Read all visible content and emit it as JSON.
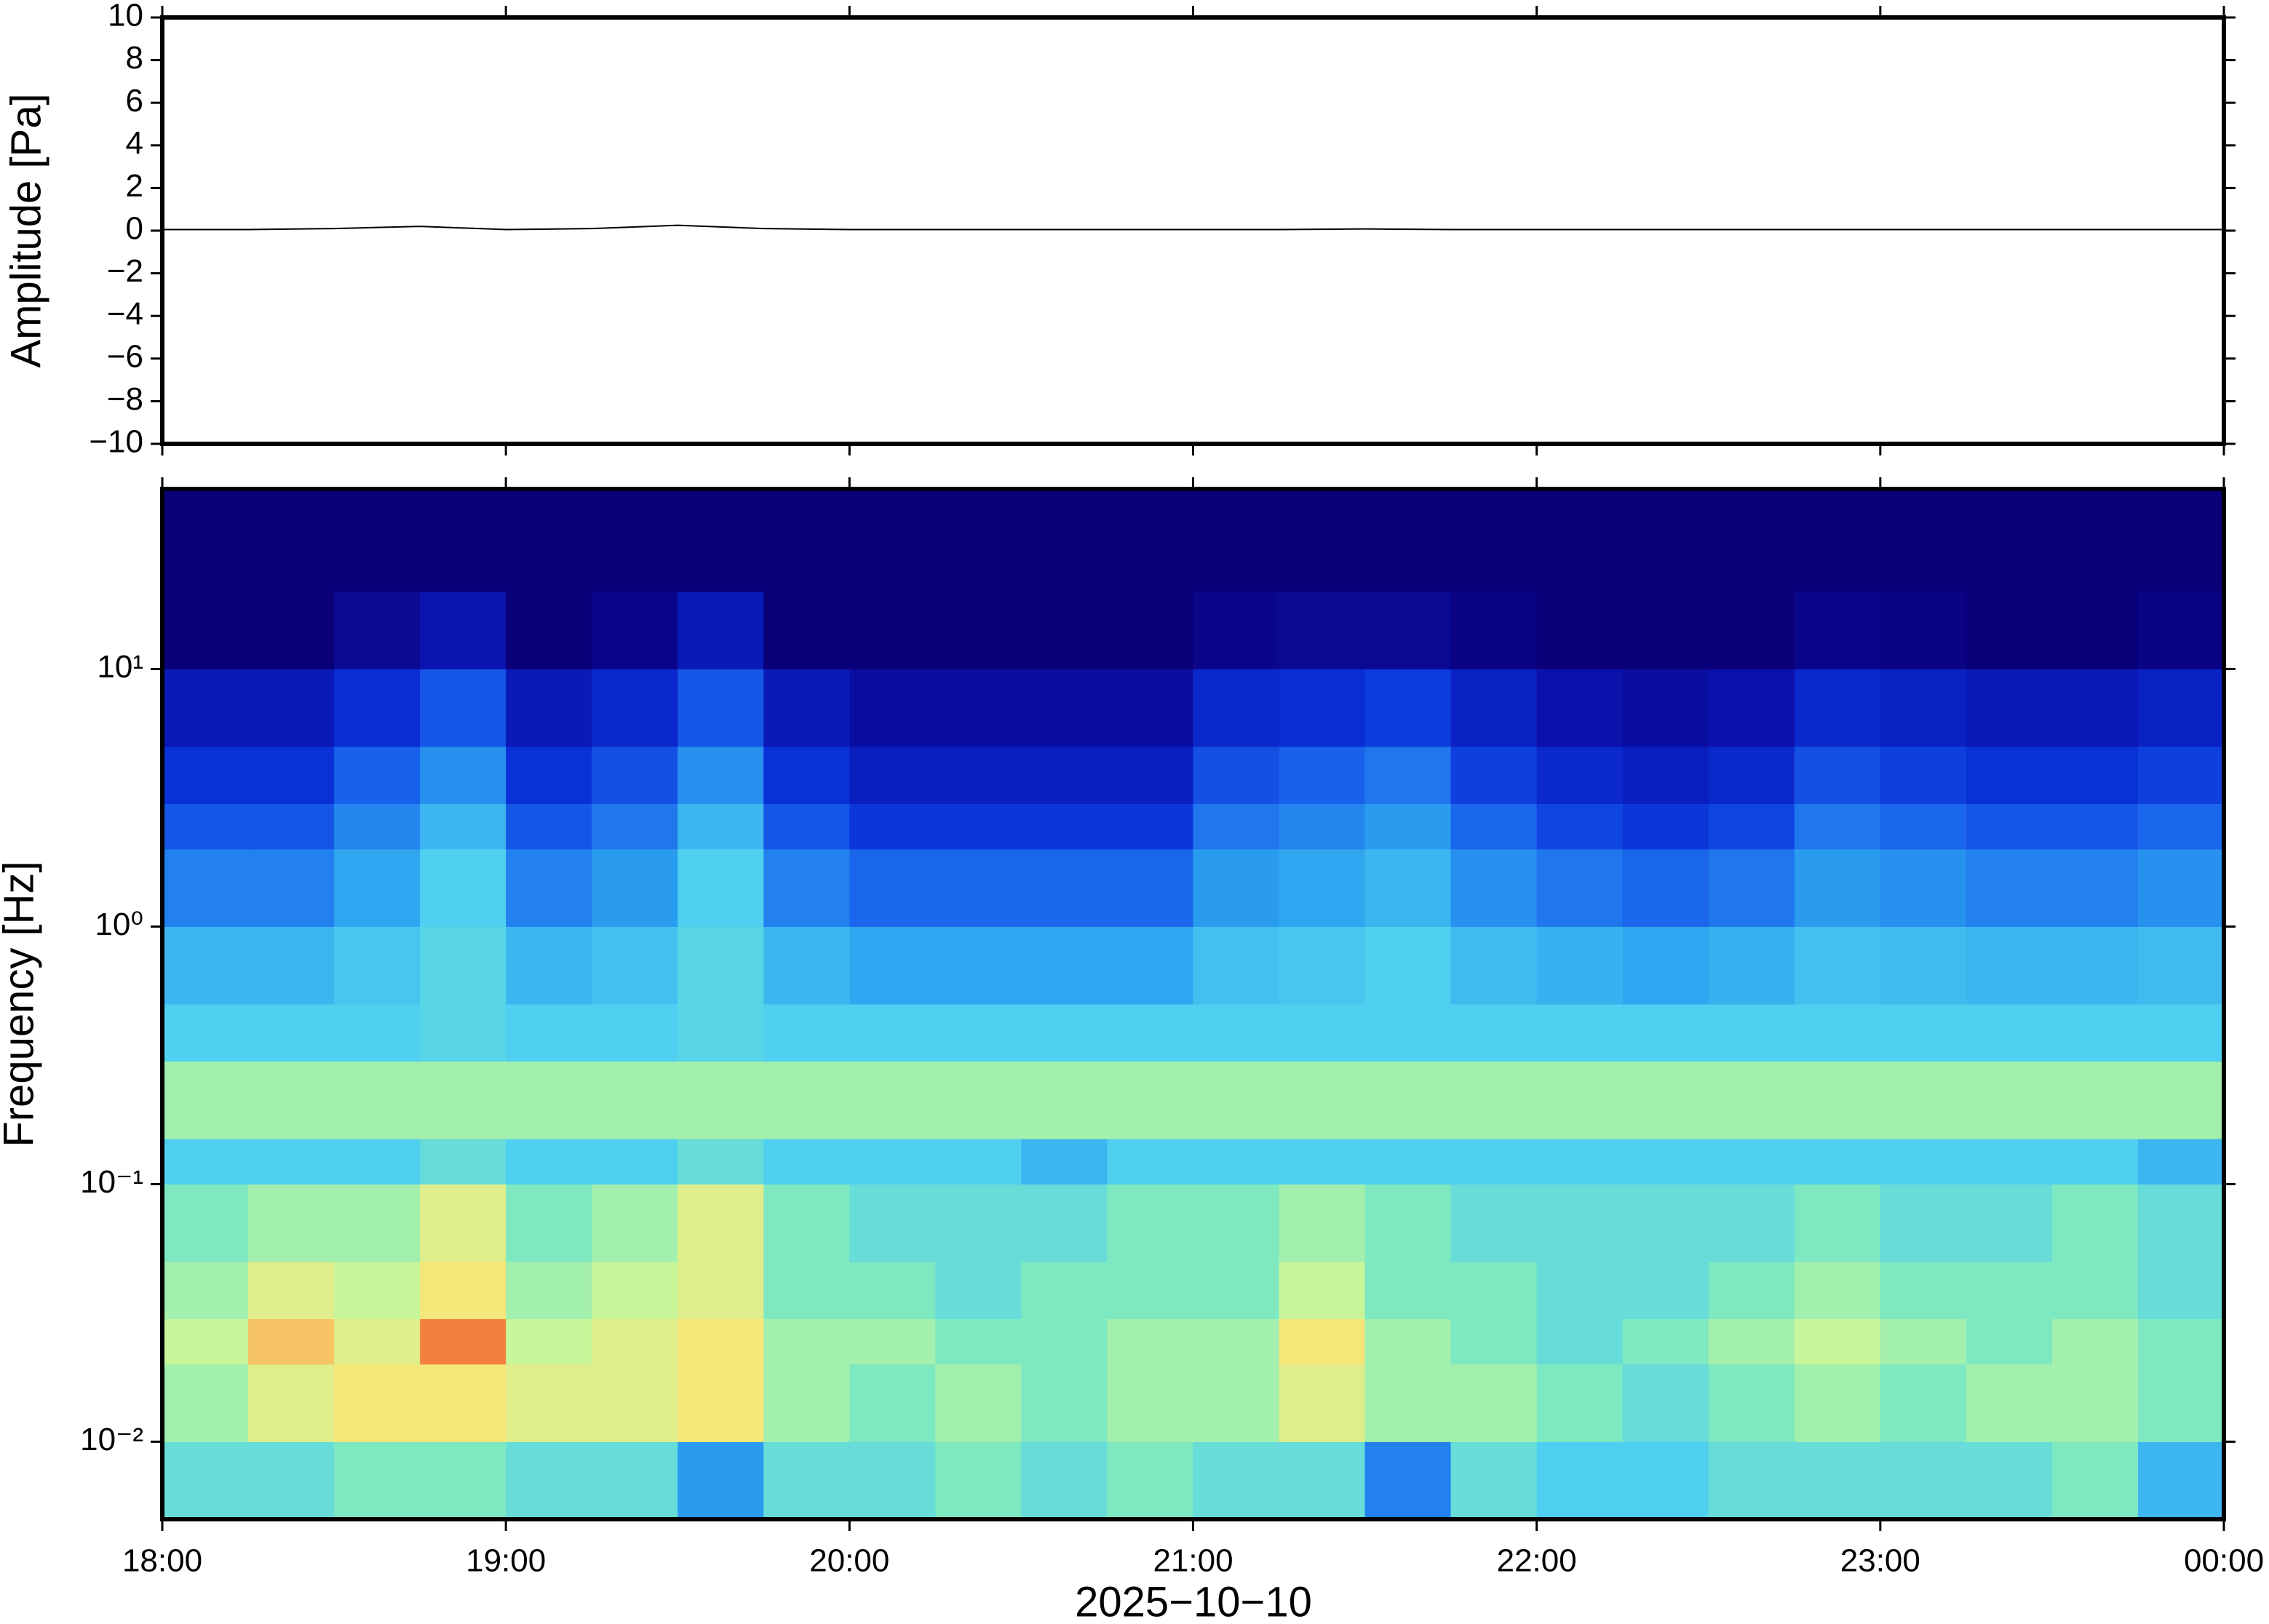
{
  "chart_data": [
    {
      "type": "line",
      "ylabel": "Amplitude [Pa]",
      "xlim": [
        18,
        24
      ],
      "x": [
        18,
        18.25,
        18.5,
        18.75,
        19,
        19.25,
        19.5,
        19.75,
        20,
        20.25,
        20.5,
        20.75,
        21,
        21.25,
        21.5,
        21.75,
        22,
        22.25,
        22.5,
        22.75,
        23,
        23.25,
        23.5,
        23.75,
        24
      ],
      "values": [
        0.05,
        0.05,
        0.1,
        0.2,
        0.05,
        0.1,
        0.25,
        0.1,
        0.05,
        0.05,
        0.05,
        0.05,
        0.05,
        0.05,
        0.08,
        0.05,
        0.05,
        0.05,
        0.05,
        0.05,
        0.05,
        0.05,
        0.05,
        0.05,
        0.05
      ],
      "color": "#000000",
      "ylim": [
        -10,
        10
      ],
      "yticks": [
        {
          "value": -10,
          "label": "−10"
        },
        {
          "value": -8,
          "label": "−8"
        },
        {
          "value": -6,
          "label": "−6"
        },
        {
          "value": -4,
          "label": "−4"
        },
        {
          "value": -2,
          "label": "−2"
        },
        0,
        2,
        4,
        6,
        8,
        10
      ]
    },
    {
      "type": "heatmap",
      "ylabel": "Frequency [Hz]",
      "xlabel": "2025−10−10",
      "xlim": [
        18,
        24
      ],
      "xticks": [
        {
          "value": 18,
          "label": "18:00"
        },
        {
          "value": 19,
          "label": "19:00"
        },
        {
          "value": 20,
          "label": "20:00"
        },
        {
          "value": 21,
          "label": "21:00"
        },
        {
          "value": 22,
          "label": "22:00"
        },
        {
          "value": 23,
          "label": "23:00"
        },
        {
          "value": 24,
          "label": "00:00"
        }
      ],
      "log_y": true,
      "ylim": [
        0.005,
        50
      ],
      "yticks": [
        {
          "value": 0.01,
          "label": "10⁻²"
        },
        {
          "value": 0.1,
          "label": "10⁻¹"
        },
        {
          "value": 1,
          "label": "10⁰"
        },
        {
          "value": 10,
          "label": "10¹"
        }
      ],
      "x_edges": [
        18,
        18.25,
        18.5,
        18.75,
        19,
        19.25,
        19.5,
        19.75,
        20,
        20.25,
        20.5,
        20.75,
        21,
        21.25,
        21.5,
        21.75,
        22,
        22.25,
        22.5,
        22.75,
        23,
        23.25,
        23.5,
        23.75,
        24
      ],
      "y_edges": [
        0.005,
        0.01,
        0.02,
        0.03,
        0.05,
        0.1,
        0.15,
        0.2,
        0.3,
        0.5,
        1,
        2,
        3,
        5,
        10,
        20,
        50
      ],
      "zlim": [
        0,
        10
      ],
      "colormap": [
        "#0a007a",
        "#0a14b0",
        "#0a30d8",
        "#1a66ec",
        "#2a9cf0",
        "#4fd0f0",
        "#7ee8c0",
        "#c8f59a",
        "#f5e67a",
        "#f7a050",
        "#f06030"
      ],
      "values": [
        [
          5.5,
          6.5,
          7,
          6.5,
          6,
          5,
          6.5,
          6.5,
          5,
          4.5,
          3.5,
          2.7,
          2,
          1.2,
          0,
          0
        ],
        [
          5.5,
          7.5,
          8.5,
          7.5,
          6.5,
          5,
          6.5,
          6.5,
          5,
          4.5,
          3.5,
          2.7,
          2,
          1.2,
          0,
          0
        ],
        [
          6,
          8,
          7.5,
          7,
          6.5,
          5,
          6.5,
          6.5,
          5,
          4.8,
          4.2,
          3.6,
          2.9,
          1.9,
          0.5,
          0
        ],
        [
          6,
          8,
          9.5,
          8,
          7.5,
          5.5,
          6.5,
          6.5,
          5.2,
          5.2,
          5,
          4.5,
          3.8,
          2.7,
          1,
          0
        ],
        [
          5.5,
          7.5,
          7,
          6.5,
          6,
          5,
          6.5,
          6.5,
          5,
          4.5,
          3.5,
          2.7,
          2,
          1.2,
          0,
          0
        ],
        [
          5.5,
          7.5,
          7.5,
          7,
          6.5,
          5,
          6.5,
          6.5,
          5,
          4.7,
          4,
          3.3,
          2.6,
          1.7,
          0.3,
          0
        ],
        [
          4,
          8,
          8,
          7.5,
          7.5,
          5.5,
          6.5,
          6.5,
          5.2,
          5.2,
          5,
          4.5,
          3.8,
          2.7,
          1.2,
          0
        ],
        [
          5.5,
          6.5,
          6.5,
          6,
          6,
          5,
          6.5,
          6.5,
          5,
          4.5,
          3.5,
          2.7,
          2,
          1.2,
          0,
          0
        ],
        [
          5.5,
          6,
          6.5,
          6,
          5.5,
          5,
          6.5,
          6.5,
          5,
          4.2,
          3,
          2.1,
          1.4,
          0.7,
          0,
          0
        ],
        [
          6,
          6.5,
          6,
          5.5,
          5.5,
          5,
          6.5,
          6.5,
          5,
          4.2,
          3,
          2.1,
          1.4,
          0.7,
          0,
          0
        ],
        [
          5.5,
          6,
          6,
          6,
          5.5,
          4.5,
          6.5,
          6.5,
          5,
          4.2,
          3,
          2.1,
          1.4,
          0.7,
          0,
          0
        ],
        [
          6,
          6.5,
          6.5,
          6,
          6,
          5,
          6.5,
          6.5,
          5,
          4.2,
          3,
          2.1,
          1.4,
          0.7,
          0,
          0
        ],
        [
          5.5,
          6.5,
          6.5,
          6,
          6,
          5,
          6.5,
          6.5,
          5,
          4.7,
          4,
          3.3,
          2.6,
          1.7,
          0.3,
          0
        ],
        [
          5.5,
          7.5,
          8,
          7,
          6.5,
          5,
          6.5,
          6.5,
          5,
          4.8,
          4.2,
          3.6,
          2.9,
          1.9,
          0.5,
          0
        ],
        [
          3.5,
          6.5,
          6.5,
          6,
          6,
          5,
          6.5,
          6.5,
          5,
          5,
          4.5,
          4,
          3.3,
          2.2,
          0.5,
          0
        ],
        [
          5.5,
          6.5,
          6,
          6,
          5.5,
          5,
          6.5,
          6.5,
          5,
          4.6,
          3.8,
          3,
          2.3,
          1.5,
          0.2,
          0
        ],
        [
          5,
          6,
          5.5,
          5.5,
          5.5,
          5,
          6.5,
          6.5,
          5,
          4.4,
          3.3,
          2.4,
          1.7,
          0.9,
          0,
          0
        ],
        [
          5,
          5.5,
          6,
          5.5,
          5.5,
          5,
          6.5,
          6.5,
          5,
          4.2,
          3,
          2.1,
          1.4,
          0.7,
          0,
          0
        ],
        [
          5.5,
          6,
          6.5,
          6,
          5.5,
          5,
          6.5,
          6.5,
          5,
          4.4,
          3.3,
          2.4,
          1.7,
          0.9,
          0,
          0
        ],
        [
          5.5,
          6.5,
          7,
          6.5,
          6,
          5,
          6.5,
          6.5,
          5,
          4.7,
          4,
          3.3,
          2.6,
          1.7,
          0.3,
          0
        ],
        [
          5.5,
          6,
          6.5,
          6,
          5.5,
          5,
          6.5,
          6.5,
          5,
          4.6,
          3.8,
          3,
          2.3,
          1.5,
          0.2,
          0
        ],
        [
          5.5,
          6.5,
          6,
          6,
          5.5,
          5,
          6.5,
          6.5,
          5,
          4.5,
          3.5,
          2.7,
          2,
          1.2,
          0,
          0
        ],
        [
          6,
          6.5,
          6.5,
          6,
          6,
          5,
          6.5,
          6.5,
          5,
          4.5,
          3.5,
          2.7,
          2,
          1.2,
          0,
          0
        ],
        [
          4.5,
          6,
          6,
          5.5,
          5.5,
          4.5,
          6.5,
          6.5,
          5,
          4.6,
          3.8,
          3,
          2.3,
          1.5,
          0.2,
          0
        ]
      ]
    }
  ]
}
